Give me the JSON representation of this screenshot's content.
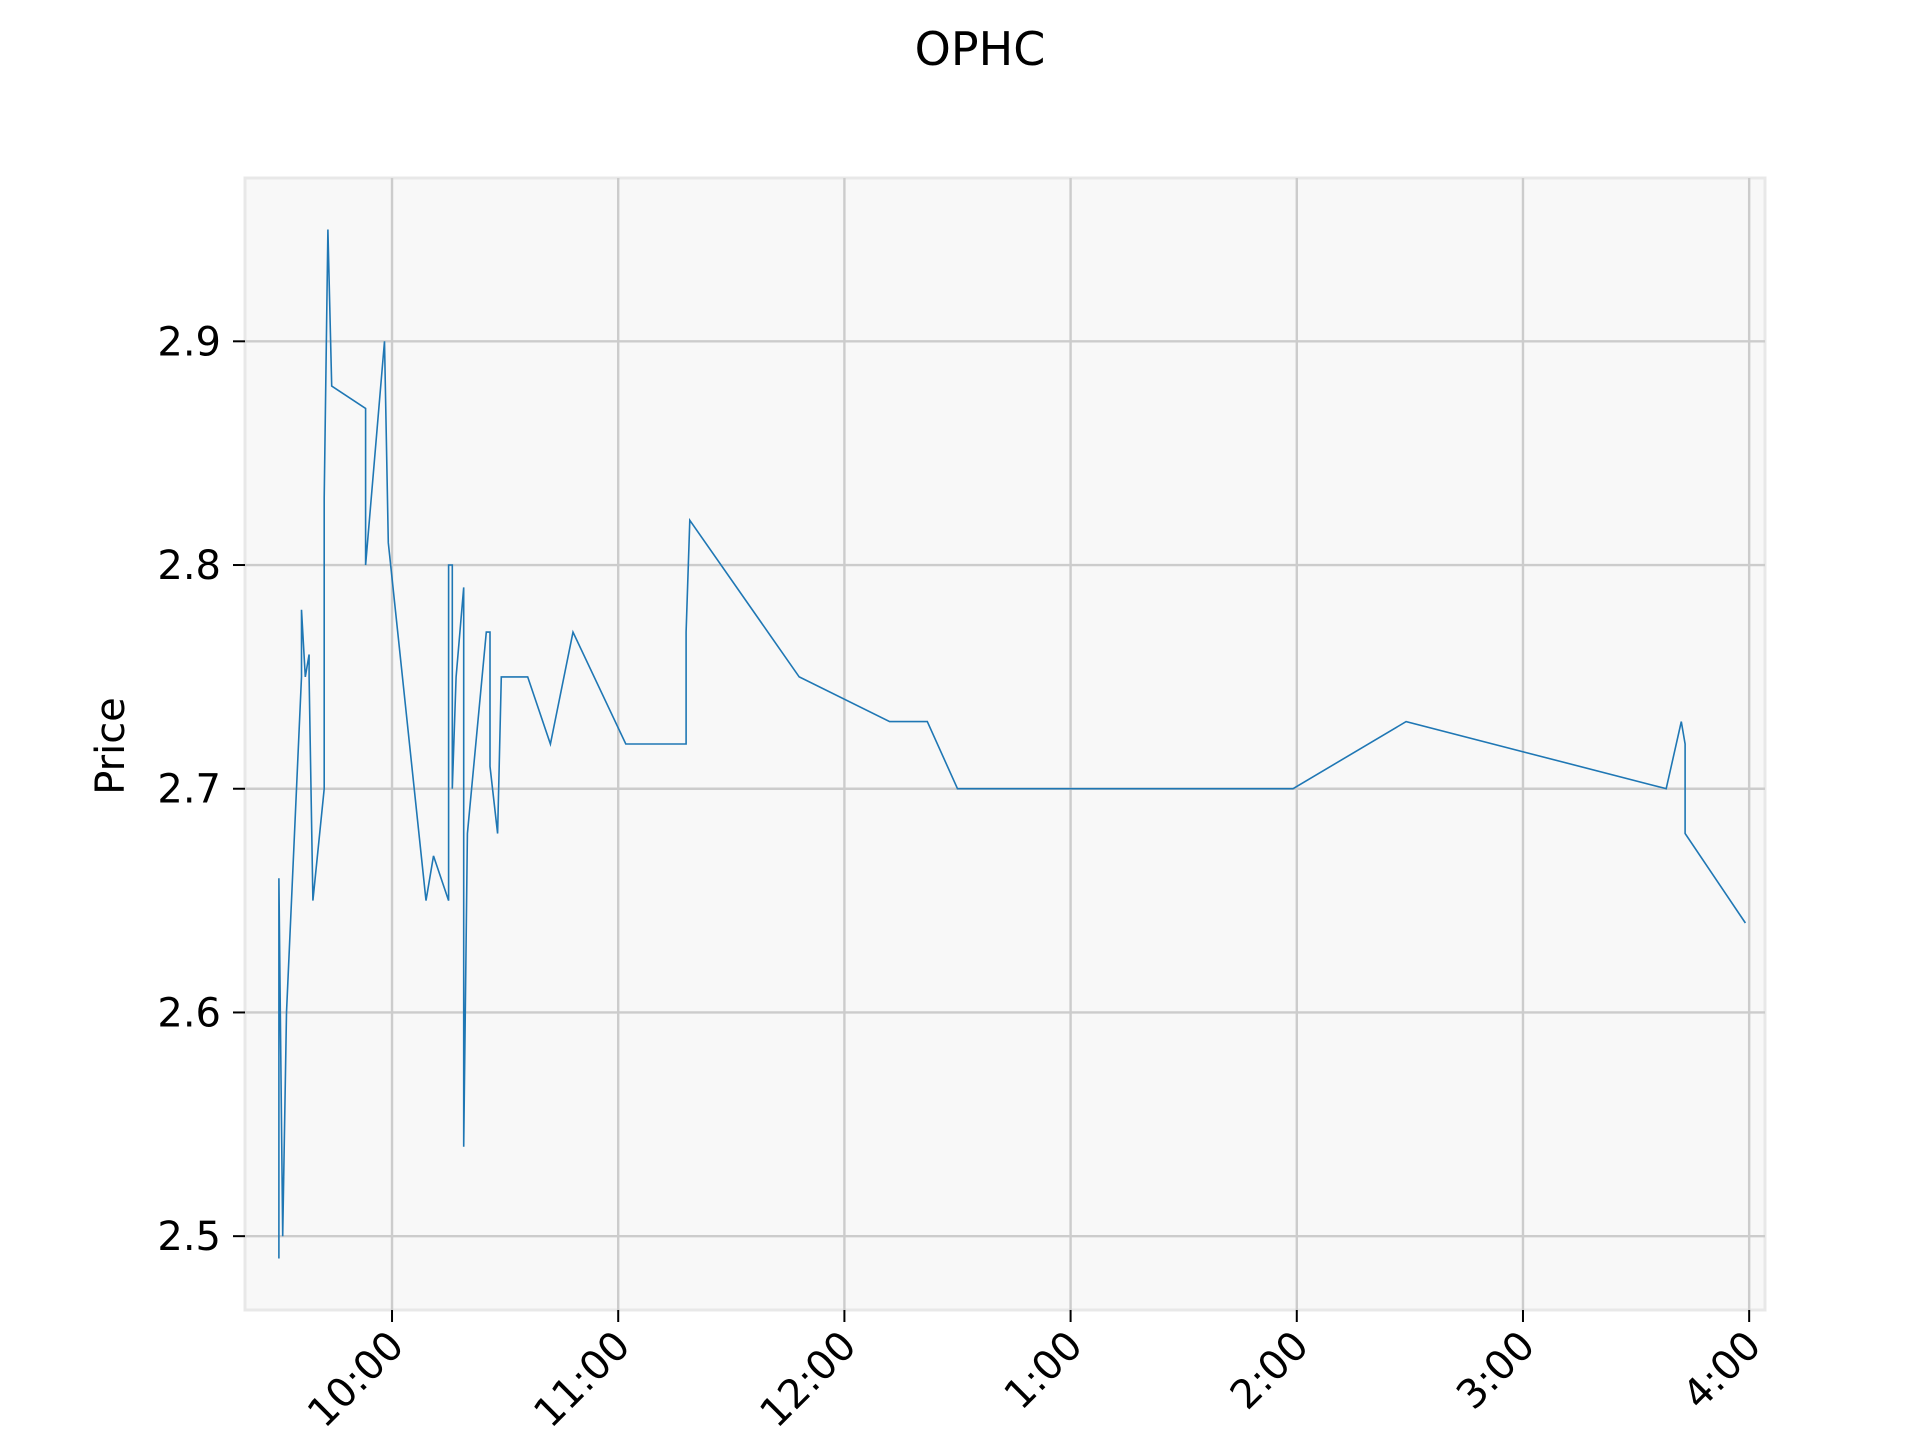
{
  "chart_data": {
    "type": "line",
    "title": "OPHC",
    "xlabel": "",
    "ylabel": "Price",
    "x_tick_labels": [
      "10:00",
      "11:00",
      "12:00",
      "1:00",
      "2:00",
      "3:00",
      "4:00"
    ],
    "x_tick_hours": [
      10,
      11,
      12,
      13,
      14,
      15,
      16
    ],
    "y_ticks": [
      2.5,
      2.6,
      2.7,
      2.8,
      2.9
    ],
    "y_tick_labels": [
      "2.5",
      "2.6",
      "2.7",
      "2.8",
      "2.9"
    ],
    "xlim_hours": [
      9.35,
      16.07
    ],
    "ylim": [
      2.467,
      2.973
    ],
    "grid": true,
    "colors": {
      "line": "#1f77b4",
      "plot_background": "#f8f8f8",
      "grid": "#cccccc",
      "frame": "#e8e8e8"
    },
    "series": [
      {
        "x": [
          "9:30",
          "9:30",
          "9:31",
          "9:32",
          "9:36",
          "9:36",
          "9:37",
          "9:38",
          "9:38",
          "9:39",
          "9:42",
          "9:42",
          "9:43",
          "9:44",
          "9:44",
          "9:53",
          "9:53",
          "9:58",
          "9:59",
          "10:09",
          "10:11",
          "10:15",
          "10:15",
          "10:16",
          "10:16",
          "10:17",
          "10:19",
          "10:19",
          "10:20",
          "10:25",
          "10:25",
          "10:26",
          "10:26",
          "10:28",
          "10:29",
          "10:36",
          "10:42",
          "10:48",
          "11:02",
          "11:18",
          "11:18",
          "11:19",
          "11:48",
          "12:12",
          "12:22",
          "12:30",
          "1:59",
          "2:29",
          "3:38",
          "3:42",
          "3:43",
          "3:43",
          "3:59"
        ],
        "values": [
          2.49,
          2.66,
          2.5,
          2.6,
          2.75,
          2.78,
          2.75,
          2.76,
          2.75,
          2.65,
          2.7,
          2.83,
          2.95,
          2.88,
          2.88,
          2.87,
          2.8,
          2.9,
          2.81,
          2.65,
          2.67,
          2.65,
          2.8,
          2.8,
          2.7,
          2.75,
          2.79,
          2.54,
          2.68,
          2.77,
          2.77,
          2.77,
          2.71,
          2.68,
          2.75,
          2.75,
          2.72,
          2.77,
          2.72,
          2.72,
          2.77,
          2.82,
          2.75,
          2.73,
          2.73,
          2.7,
          2.7,
          2.73,
          2.7,
          2.73,
          2.72,
          2.68,
          2.64
        ]
      }
    ]
  }
}
